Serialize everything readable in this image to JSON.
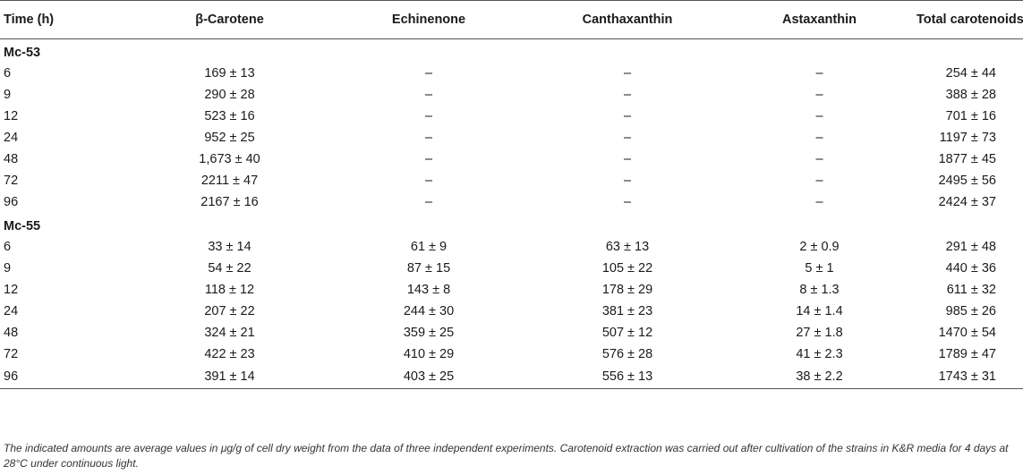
{
  "table": {
    "headers": [
      "Time (h)",
      "β-Carotene",
      "Echinenone",
      "Canthaxanthin",
      "Astaxanthin",
      "Total carotenoids"
    ],
    "groups": [
      {
        "name": "Mc-53",
        "rows": [
          [
            "6",
            "169 ± 13",
            "–",
            "–",
            "–",
            "254 ± 44"
          ],
          [
            "9",
            "290 ± 28",
            "–",
            "–",
            "–",
            "388 ± 28"
          ],
          [
            "12",
            "523 ± 16",
            "–",
            "–",
            "–",
            "701 ± 16"
          ],
          [
            "24",
            "952 ± 25",
            "–",
            "–",
            "–",
            "1197 ± 73"
          ],
          [
            "48",
            "1,673 ± 40",
            "–",
            "–",
            "–",
            "1877 ± 45"
          ],
          [
            "72",
            "2211 ± 47",
            "–",
            "–",
            "–",
            "2495 ± 56"
          ],
          [
            "96",
            "2167 ± 16",
            "–",
            "–",
            "–",
            "2424 ± 37"
          ]
        ]
      },
      {
        "name": "Mc-55",
        "rows": [
          [
            "6",
            "33 ± 14",
            "61 ± 9",
            "63 ± 13",
            "2 ± 0.9",
            "291 ± 48"
          ],
          [
            "9",
            "54 ± 22",
            "87 ± 15",
            "105 ± 22",
            "5 ± 1",
            "440 ± 36"
          ],
          [
            "12",
            "118 ± 12",
            "143 ± 8",
            "178 ± 29",
            "8 ± 1.3",
            "611 ± 32"
          ],
          [
            "24",
            "207 ± 22",
            "244 ± 30",
            "381 ± 23",
            "14 ± 1.4",
            "985 ± 26"
          ],
          [
            "48",
            "324 ± 21",
            "359 ± 25",
            "507 ± 12",
            "27 ± 1.8",
            "1470 ± 54"
          ],
          [
            "72",
            "422 ± 23",
            "410 ± 29",
            "576 ± 28",
            "41 ± 2.3",
            "1789 ± 47"
          ],
          [
            "96",
            "391 ± 14",
            "403 ± 25",
            "556 ± 13",
            "38 ± 2.2",
            "1743 ± 31"
          ]
        ]
      }
    ]
  },
  "footnote": "The indicated amounts are average values in μg/g of cell dry weight from the data of three independent experiments. Carotenoid extraction was carried out after cultivation of the strains in K&R media for 4 days at 28°C under continuous light."
}
